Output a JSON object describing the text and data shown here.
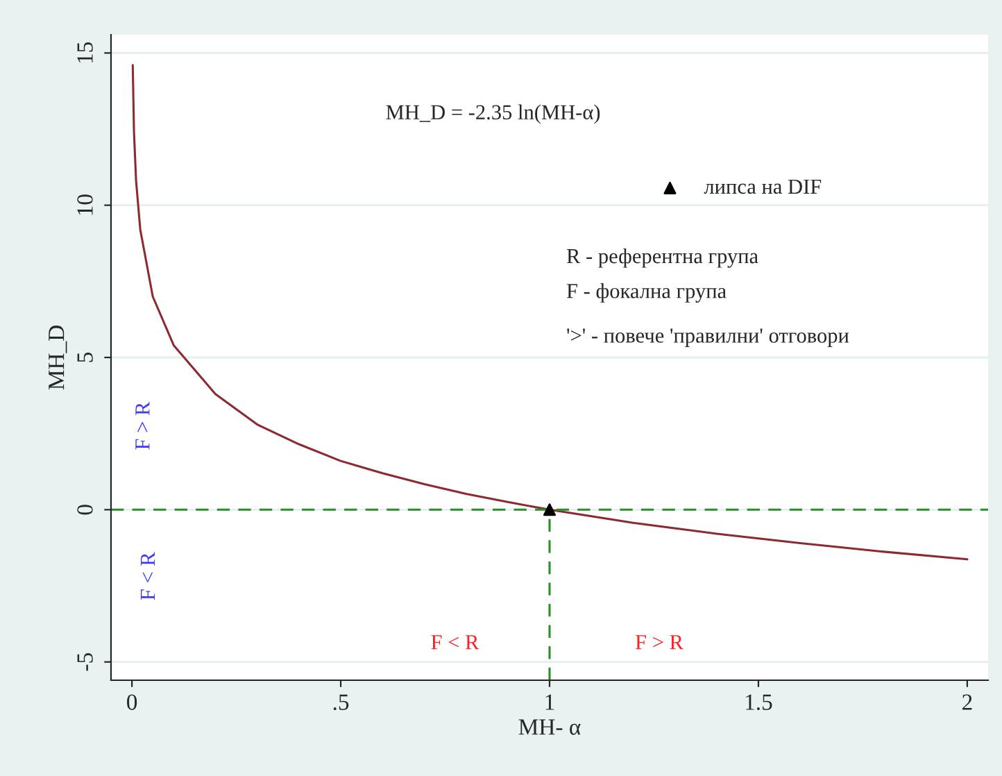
{
  "chart_data": {
    "type": "line",
    "xlabel": "MH- α",
    "ylabel": "MH_D",
    "series": [
      {
        "color": "#8b2a2f",
        "x": [
          0.002,
          0.005,
          0.01,
          0.02,
          0.05,
          0.1,
          0.2,
          0.3,
          0.4,
          0.5,
          0.6,
          0.7,
          0.8,
          0.9,
          1.0,
          1.2,
          1.4,
          1.6,
          1.8,
          2.0
        ],
        "values": [
          14.6,
          12.4,
          10.8,
          9.2,
          7.0,
          5.4,
          3.8,
          2.8,
          2.15,
          1.6,
          1.2,
          0.84,
          0.52,
          0.25,
          0,
          -0.43,
          -0.79,
          -1.1,
          -1.38,
          -1.63
        ]
      },
      {
        "type": "line",
        "color": "#2e8b2e",
        "line_style": "dashed",
        "x": [
          1,
          1
        ],
        "values": [
          -5.6,
          0
        ]
      },
      {
        "type": "scatter",
        "name": "липса на DIF",
        "color": "#000000",
        "marker": "triangle",
        "x": [
          1
        ],
        "values": [
          0
        ]
      }
    ],
    "ref_lines": [
      {
        "axis": "y",
        "value": 0,
        "color": "#2e8b2e",
        "line_style": "dashed"
      }
    ],
    "annotations": [
      "MH_D = -2.35 ln(MH-α)",
      "R - референтна група",
      "F - фокална група",
      "'>' - повече 'правилни' отговори",
      "F > R",
      "F < R",
      "F < R",
      "F > R"
    ],
    "xlim": [
      -0.05,
      2.05
    ],
    "ylim": [
      -5.6,
      15.6
    ],
    "xticks": [
      0,
      {
        "value": 0.5,
        "label": ".5"
      },
      1,
      1.5,
      2
    ],
    "yticks": [
      -5,
      0,
      5,
      10,
      15
    ],
    "grid": "y",
    "legend": "top right"
  }
}
